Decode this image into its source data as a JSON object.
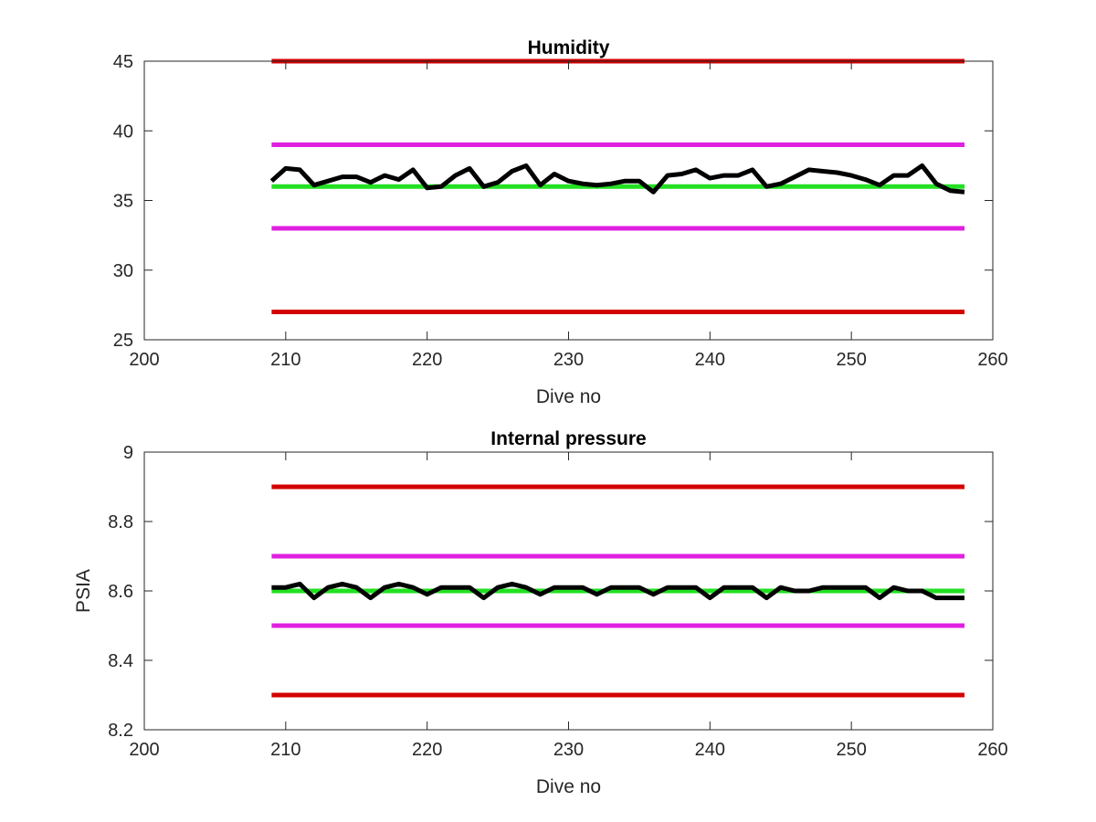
{
  "chart_data": [
    {
      "type": "line",
      "title": "Humidity",
      "xlabel": "Dive no",
      "ylabel": "",
      "xlim": [
        200,
        260
      ],
      "ylim": [
        25,
        45
      ],
      "xticks": [
        200,
        210,
        220,
        230,
        240,
        250,
        260
      ],
      "yticks": [
        25,
        30,
        35,
        40,
        45
      ],
      "xtick_labels": [
        "200",
        "210",
        "220",
        "230",
        "240",
        "250",
        "260"
      ],
      "ytick_labels": [
        "25",
        "30",
        "35",
        "40",
        "45"
      ],
      "grid": false,
      "legend": "none",
      "series": [
        {
          "color": "#d40000",
          "x": [
            209,
            258
          ],
          "y": [
            45,
            45
          ]
        },
        {
          "color": "#d40000",
          "x": [
            209,
            258
          ],
          "y": [
            27,
            27
          ]
        },
        {
          "color": "#e020e0",
          "x": [
            209,
            258
          ],
          "y": [
            39,
            39
          ]
        },
        {
          "color": "#e020e0",
          "x": [
            209,
            258
          ],
          "y": [
            33,
            33
          ]
        },
        {
          "color": "#22e022",
          "x": [
            209,
            258
          ],
          "y": [
            36,
            36
          ]
        },
        {
          "color": "#000000",
          "x": [
            209,
            210,
            211,
            212,
            213,
            214,
            215,
            216,
            217,
            218,
            219,
            220,
            221,
            222,
            223,
            224,
            225,
            226,
            227,
            228,
            229,
            230,
            231,
            232,
            233,
            234,
            235,
            236,
            237,
            238,
            239,
            240,
            241,
            242,
            243,
            244,
            245,
            246,
            247,
            248,
            249,
            250,
            251,
            252,
            253,
            254,
            255,
            256,
            257,
            258
          ],
          "y": [
            36.4,
            37.3,
            37.2,
            36.1,
            36.4,
            36.7,
            36.7,
            36.3,
            36.8,
            36.5,
            37.2,
            35.9,
            36.0,
            36.8,
            37.3,
            36.0,
            36.3,
            37.1,
            37.5,
            36.1,
            36.9,
            36.4,
            36.2,
            36.1,
            36.2,
            36.4,
            36.4,
            35.6,
            36.8,
            36.9,
            37.2,
            36.6,
            36.8,
            36.8,
            37.2,
            36.0,
            36.2,
            36.7,
            37.2,
            37.1,
            37.0,
            36.8,
            36.5,
            36.1,
            36.8,
            36.8,
            37.5,
            36.2,
            35.7,
            35.6
          ]
        }
      ]
    },
    {
      "type": "line",
      "title": "Internal pressure",
      "xlabel": "Dive no",
      "ylabel": "PSIA",
      "xlim": [
        200,
        260
      ],
      "ylim": [
        8.2,
        9.0
      ],
      "xticks": [
        200,
        210,
        220,
        230,
        240,
        250,
        260
      ],
      "yticks": [
        8.2,
        8.4,
        8.6,
        8.8,
        9.0
      ],
      "xtick_labels": [
        "200",
        "210",
        "220",
        "230",
        "240",
        "250",
        "260"
      ],
      "ytick_labels": [
        "8.2",
        "8.4",
        "8.6",
        "8.8",
        "9"
      ],
      "grid": false,
      "legend": "none",
      "series": [
        {
          "color": "#d40000",
          "x": [
            209,
            258
          ],
          "y": [
            8.9,
            8.9
          ]
        },
        {
          "color": "#d40000",
          "x": [
            209,
            258
          ],
          "y": [
            8.3,
            8.3
          ]
        },
        {
          "color": "#e020e0",
          "x": [
            209,
            258
          ],
          "y": [
            8.7,
            8.7
          ]
        },
        {
          "color": "#e020e0",
          "x": [
            209,
            258
          ],
          "y": [
            8.5,
            8.5
          ]
        },
        {
          "color": "#22e022",
          "x": [
            209,
            258
          ],
          "y": [
            8.6,
            8.6
          ]
        },
        {
          "color": "#000000",
          "x": [
            209,
            210,
            211,
            212,
            213,
            214,
            215,
            216,
            217,
            218,
            219,
            220,
            221,
            222,
            223,
            224,
            225,
            226,
            227,
            228,
            229,
            230,
            231,
            232,
            233,
            234,
            235,
            236,
            237,
            238,
            239,
            240,
            241,
            242,
            243,
            244,
            245,
            246,
            247,
            248,
            249,
            250,
            251,
            252,
            253,
            254,
            255,
            256,
            257,
            258
          ],
          "y": [
            8.61,
            8.61,
            8.62,
            8.58,
            8.61,
            8.62,
            8.61,
            8.58,
            8.61,
            8.62,
            8.61,
            8.59,
            8.61,
            8.61,
            8.61,
            8.58,
            8.61,
            8.62,
            8.61,
            8.59,
            8.61,
            8.61,
            8.61,
            8.59,
            8.61,
            8.61,
            8.61,
            8.59,
            8.61,
            8.61,
            8.61,
            8.58,
            8.61,
            8.61,
            8.61,
            8.58,
            8.61,
            8.6,
            8.6,
            8.61,
            8.61,
            8.61,
            8.61,
            8.58,
            8.61,
            8.6,
            8.6,
            8.58,
            8.58,
            8.58
          ]
        }
      ]
    }
  ]
}
